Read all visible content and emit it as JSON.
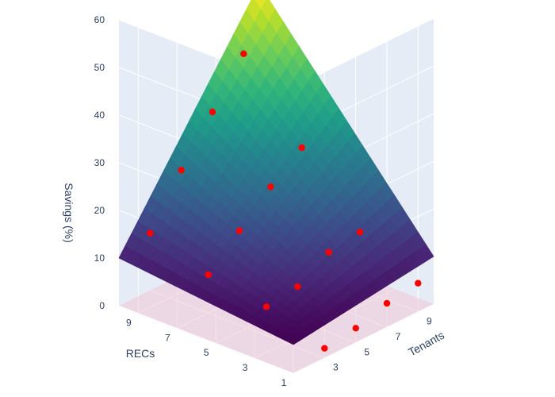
{
  "chart_data": {
    "type": "surface3d",
    "zlabel": "Savings (%)",
    "xlabel": "Tenants",
    "ylabel": "RECs",
    "z_ticks": [
      "0",
      "10",
      "20",
      "30",
      "40",
      "50",
      "60"
    ],
    "x_ticks": [
      "3",
      "5",
      "7",
      "9"
    ],
    "y_ticks": [
      "9",
      "7",
      "5",
      "3",
      "1"
    ],
    "ranges": {
      "tenants": [
        1,
        10
      ],
      "recs": [
        1,
        10
      ],
      "savings": [
        0,
        60
      ]
    },
    "surface": {
      "colorscale": "Viridis",
      "corners": [
        {
          "tenants": 1,
          "recs": 1,
          "savings": 6
        },
        {
          "tenants": 1,
          "recs": 10,
          "savings": 10
        },
        {
          "tenants": 10,
          "recs": 1,
          "savings": 10
        },
        {
          "tenants": 10,
          "recs": 10,
          "savings": 53
        }
      ]
    },
    "floor_plane": {
      "color": "#f2c6d6"
    },
    "scatter": {
      "color": "#ff0000",
      "points": [
        {
          "tenants": 9,
          "recs": 10,
          "savings": 40
        },
        {
          "tenants": 7,
          "recs": 10,
          "savings": 31
        },
        {
          "tenants": 5,
          "recs": 10,
          "savings": 22
        },
        {
          "tenants": 3,
          "recs": 10,
          "savings": 12
        },
        {
          "tenants": 9,
          "recs": 7,
          "savings": 25
        },
        {
          "tenants": 7,
          "recs": 7,
          "savings": 20
        },
        {
          "tenants": 5,
          "recs": 7,
          "savings": 14
        },
        {
          "tenants": 3,
          "recs": 7,
          "savings": 8
        },
        {
          "tenants": 9,
          "recs": 4,
          "savings": 12
        },
        {
          "tenants": 7,
          "recs": 4,
          "savings": 11
        },
        {
          "tenants": 5,
          "recs": 4,
          "savings": 7
        },
        {
          "tenants": 3,
          "recs": 4,
          "savings": 6
        },
        {
          "tenants": 9,
          "recs": 1,
          "savings": 6
        },
        {
          "tenants": 7,
          "recs": 1,
          "savings": 5
        },
        {
          "tenants": 5,
          "recs": 1,
          "savings": 3
        },
        {
          "tenants": 3,
          "recs": 1,
          "savings": 2
        }
      ]
    }
  }
}
